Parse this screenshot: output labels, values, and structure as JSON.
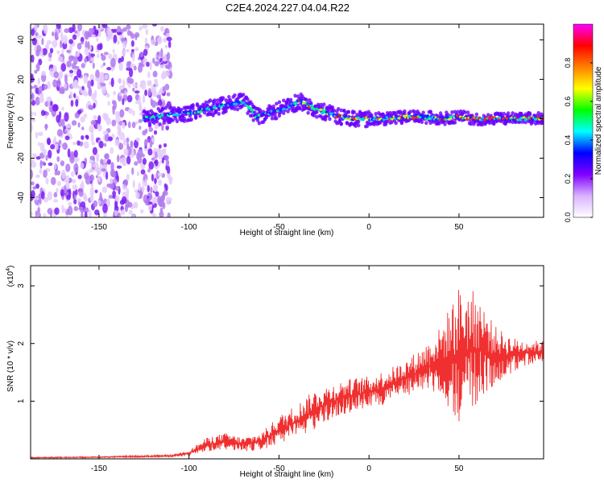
{
  "page": {
    "title": "C2E4.2024.227.04.04.R22"
  },
  "chart_data": [
    {
      "type": "heatmap",
      "xlabel": "Height of straight line (km)",
      "ylabel": "Frequency (Hz)",
      "xlim": [
        -188,
        97
      ],
      "ylim": [
        -50,
        48
      ],
      "xticks": [
        -150,
        -100,
        -50,
        0,
        50
      ],
      "yticks": [
        -40,
        -20,
        0,
        20,
        40
      ],
      "colorbar": {
        "label": "Normalized spectral amplitude",
        "range": [
          0,
          1
        ],
        "ticks": [
          "0.0",
          "0.2",
          "0.4",
          "0.6",
          "0.8"
        ],
        "colors": [
          "#ffffff",
          "#d9b3ff",
          "#8000ff",
          "#0000ff",
          "#00ffff",
          "#00ff00",
          "#ffff00",
          "#ff8000",
          "#ff0000",
          "#ff00ff"
        ]
      },
      "ridge": {
        "x": [
          -125,
          -110,
          -100,
          -90,
          -80,
          -70,
          -62,
          -55,
          -45,
          -38,
          -30,
          -20,
          -10,
          0,
          10,
          20,
          30,
          40,
          50,
          60,
          70,
          80,
          90,
          97
        ],
        "y": [
          0,
          2,
          3,
          5,
          7,
          9,
          1,
          3,
          6,
          9,
          5,
          2,
          0,
          0,
          0,
          1,
          1,
          0,
          1,
          0,
          0,
          0,
          0,
          0
        ]
      },
      "noise_region_x": [
        -188,
        -110
      ]
    },
    {
      "type": "line",
      "xlabel": "Height of straight line (km)",
      "ylabel": "SNR (10 * v/v)",
      "y_multiplier": "(x10",
      "y_multiplier_exp": "4",
      "y_multiplier_close": ")",
      "xlim": [
        -188,
        97
      ],
      "ylim": [
        0,
        3.35
      ],
      "xticks": [
        -150,
        -100,
        -50,
        0,
        50
      ],
      "yticks": [
        1,
        2,
        3
      ],
      "color": "#f03030",
      "series": {
        "x": [
          -188,
          -150,
          -110,
          -100,
          -90,
          -80,
          -70,
          -60,
          -50,
          -40,
          -30,
          -20,
          -10,
          0,
          10,
          20,
          30,
          40,
          50,
          60,
          70,
          80,
          90,
          97
        ],
        "y": [
          0.02,
          0.03,
          0.05,
          0.1,
          0.25,
          0.3,
          0.25,
          0.3,
          0.5,
          0.65,
          0.85,
          1.0,
          1.1,
          1.15,
          1.25,
          1.4,
          1.55,
          1.7,
          1.8,
          1.9,
          1.8,
          1.8,
          1.85,
          1.85
        ],
        "amplitude": [
          0.01,
          0.01,
          0.02,
          0.05,
          0.12,
          0.15,
          0.12,
          0.15,
          0.25,
          0.3,
          0.35,
          0.3,
          0.3,
          0.28,
          0.3,
          0.3,
          0.4,
          0.6,
          1.2,
          1.0,
          0.5,
          0.3,
          0.2,
          0.2
        ]
      }
    }
  ]
}
